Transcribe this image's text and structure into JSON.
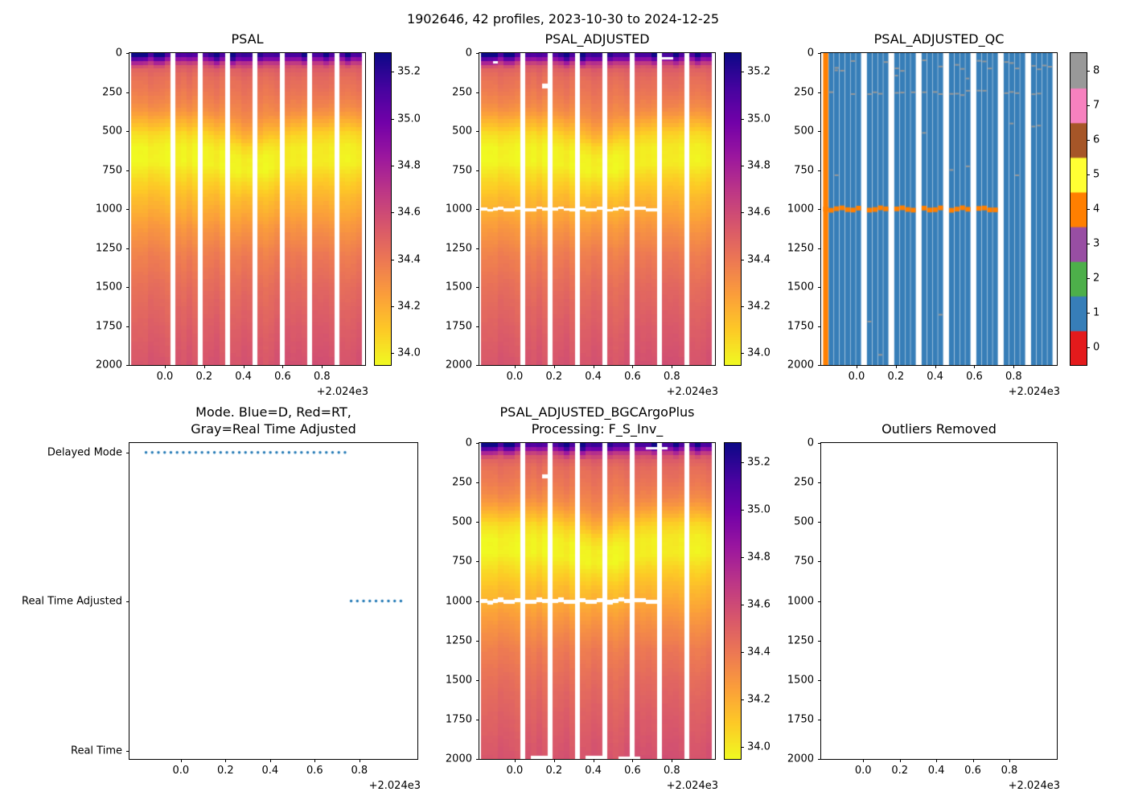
{
  "figure": {
    "title": "1902646, 42 profiles, 2023-10-30 to 2024-12-25",
    "background": "#ffffff"
  },
  "colormaps": {
    "plasma": [
      [
        0,
        "#0d0887"
      ],
      [
        0.111,
        "#46039f"
      ],
      [
        0.222,
        "#7201a8"
      ],
      [
        0.333,
        "#9c179e"
      ],
      [
        0.444,
        "#bd3786"
      ],
      [
        0.556,
        "#d8576b"
      ],
      [
        0.667,
        "#ed7953"
      ],
      [
        0.778,
        "#fb9f3a"
      ],
      [
        0.889,
        "#fdca26"
      ],
      [
        1,
        "#f0f921"
      ]
    ],
    "qc_flags": [
      "#e41a1c",
      "#377eb8",
      "#4daf4a",
      "#984ea3",
      "#ff7f00",
      "#ffff33",
      "#a65628",
      "#f781bf",
      "#999999"
    ]
  },
  "chart_data": [
    {
      "id": "psal",
      "type": "heatmap",
      "title": "PSAL",
      "x_range": [
        -0.18,
        1.02
      ],
      "data_x_range": [
        -0.17,
        1.0
      ],
      "x_ticks": [
        0.0,
        0.2,
        0.4,
        0.6,
        0.8
      ],
      "x_tick_labels": [
        "0.0",
        "0.2",
        "0.4",
        "0.6",
        "0.8"
      ],
      "x_offset_label": "+2.024e3",
      "y_range": [
        0,
        2000
      ],
      "y_ticks": [
        0,
        250,
        500,
        750,
        1000,
        1250,
        1500,
        1750,
        2000
      ],
      "y_tick_labels": [
        "0",
        "250",
        "500",
        "750",
        "1000",
        "1250",
        "1500",
        "1750",
        "2000"
      ],
      "n_profiles": 42,
      "gap_columns": [
        7,
        12,
        17,
        22,
        27,
        32,
        37
      ],
      "profile": {
        "depths": [
          0,
          25,
          50,
          90,
          150,
          250,
          350,
          450,
          520,
          600,
          700,
          800,
          900,
          1000,
          1150,
          1300,
          1500,
          1750,
          2000
        ],
        "values": [
          35.18,
          35.02,
          34.72,
          34.52,
          34.45,
          34.4,
          34.32,
          34.17,
          34.05,
          33.98,
          33.97,
          34.06,
          34.14,
          34.2,
          34.3,
          34.38,
          34.45,
          34.51,
          34.56
        ]
      },
      "dip": {
        "center": 0.43,
        "sigma": 0.11,
        "amplitude": 90
      },
      "surface_dark_columns": [
        0,
        1,
        2
      ],
      "colorbar": {
        "vmin": 33.95,
        "vmax": 35.28,
        "ticks": [
          35.2,
          35.0,
          34.8,
          34.6,
          34.4,
          34.2,
          34.0
        ],
        "tick_labels": [
          "35.2",
          "35.0",
          "34.8",
          "34.6",
          "34.4",
          "34.2",
          "34.0"
        ]
      }
    },
    {
      "id": "psal_adjusted",
      "type": "heatmap",
      "title": "PSAL_ADJUSTED",
      "profile_from": 0,
      "x_range": [
        -0.18,
        1.02
      ],
      "data_x_range": [
        -0.17,
        1.0
      ],
      "x_ticks": [
        0.0,
        0.2,
        0.4,
        0.6,
        0.8
      ],
      "x_tick_labels": [
        "0.0",
        "0.2",
        "0.4",
        "0.6",
        "0.8"
      ],
      "x_offset_label": "+2.024e3",
      "y_range": [
        0,
        2000
      ],
      "y_ticks": [
        0,
        250,
        500,
        750,
        1000,
        1250,
        1500,
        1750,
        2000
      ],
      "y_tick_labels": [
        "0",
        "250",
        "500",
        "750",
        "1000",
        "1250",
        "1500",
        "1750",
        "2000"
      ],
      "n_profiles": 42,
      "gap_columns": [
        7,
        12,
        17,
        22,
        27,
        32,
        37
      ],
      "masked_band": {
        "depth": 1000,
        "half_width": 10,
        "x_max": 0.74
      },
      "white_dashes": [
        {
          "cols": [
            11,
            11
          ],
          "depths": [
            198,
            225
          ]
        },
        {
          "cols": [
            2,
            2
          ],
          "depths": [
            52,
            68
          ]
        },
        {
          "cols": [
            33,
            34
          ],
          "depths": [
            24,
            40
          ]
        }
      ],
      "colorbar": {
        "vmin": 33.95,
        "vmax": 35.28,
        "ticks": [
          35.2,
          35.0,
          34.8,
          34.6,
          34.4,
          34.2,
          34.0
        ],
        "tick_labels": [
          "35.2",
          "35.0",
          "34.8",
          "34.6",
          "34.4",
          "34.2",
          "34.0"
        ]
      }
    },
    {
      "id": "psal_adjusted_qc",
      "type": "qc_heatmap",
      "title": "PSAL_ADJUSTED_QC",
      "x_range": [
        -0.18,
        1.02
      ],
      "data_x_range": [
        -0.17,
        1.0
      ],
      "x_ticks": [
        0.0,
        0.2,
        0.4,
        0.6,
        0.8
      ],
      "x_tick_labels": [
        "0.0",
        "0.2",
        "0.4",
        "0.6",
        "0.8"
      ],
      "x_offset_label": "+2.024e3",
      "y_range": [
        0,
        2000
      ],
      "y_ticks": [
        0,
        250,
        500,
        750,
        1000,
        1250,
        1500,
        1750,
        2000
      ],
      "y_tick_labels": [
        "0",
        "250",
        "500",
        "750",
        "1000",
        "1250",
        "1500",
        "1750",
        "2000"
      ],
      "n_profiles": 42,
      "gap_columns": [
        7,
        12,
        17,
        22,
        27,
        32,
        37
      ],
      "base_flag": 1,
      "first_column_flag": 4,
      "band": {
        "depth": 1000,
        "half_width": 15,
        "x_max": 0.74,
        "flag": 4
      },
      "dash_flag": 8,
      "colorbar": {
        "discrete": true,
        "ticks": [
          0,
          1,
          2,
          3,
          4,
          5,
          6,
          7,
          8
        ],
        "tick_labels": [
          "0",
          "1",
          "2",
          "3",
          "4",
          "5",
          "6",
          "7",
          "8"
        ]
      }
    },
    {
      "id": "mode",
      "type": "dot_status",
      "title": "Mode. Blue=D, Red=RT,\nGray=Real Time Adjusted",
      "x_range": [
        -0.23,
        1.06
      ],
      "x_ticks": [
        0.0,
        0.2,
        0.4,
        0.6,
        0.8
      ],
      "x_tick_labels": [
        "0.0",
        "0.2",
        "0.4",
        "0.6",
        "0.8"
      ],
      "x_offset_label": "+2.024e3",
      "y_categories": [
        {
          "label": "Delayed Mode",
          "f": 0.03
        },
        {
          "label": "Real Time Adjusted",
          "f": 0.5
        },
        {
          "label": "Real Time",
          "f": 0.975
        }
      ],
      "marker_color": "#1f77b4",
      "segments": [
        {
          "category": "Delayed Mode",
          "x_start": -0.156,
          "x_end": 0.737,
          "step": 0.02786
        },
        {
          "category": "Real Time Adjusted",
          "x_start": 0.763,
          "x_end": 0.987,
          "step": 0.02786
        }
      ]
    },
    {
      "id": "psal_adjusted_bgc",
      "type": "heatmap",
      "title": "PSAL_ADJUSTED_BGCArgoPlus\nProcessing: F_S_Inv_",
      "profile_from": 0,
      "x_range": [
        -0.18,
        1.02
      ],
      "data_x_range": [
        -0.17,
        1.0
      ],
      "x_ticks": [
        0.0,
        0.2,
        0.4,
        0.6,
        0.8
      ],
      "x_tick_labels": [
        "0.0",
        "0.2",
        "0.4",
        "0.6",
        "0.8"
      ],
      "x_offset_label": "+2.024e3",
      "y_range": [
        0,
        2000
      ],
      "y_ticks": [
        0,
        250,
        500,
        750,
        1000,
        1250,
        1500,
        1750,
        2000
      ],
      "y_tick_labels": [
        "0",
        "250",
        "500",
        "750",
        "1000",
        "1250",
        "1500",
        "1750",
        "2000"
      ],
      "n_profiles": 42,
      "gap_columns": [
        7,
        12,
        17,
        22,
        27,
        32,
        37
      ],
      "masked_band": {
        "depth": 1000,
        "half_width": 13,
        "x_max": 0.74
      },
      "white_dashes": [
        {
          "cols": [
            9,
            11
          ],
          "depths": [
            1982,
            2000
          ]
        },
        {
          "cols": [
            19,
            21
          ],
          "depths": [
            1982,
            2000
          ]
        },
        {
          "cols": [
            25,
            28
          ],
          "depths": [
            1986,
            2000
          ]
        },
        {
          "cols": [
            30,
            33
          ],
          "depths": [
            24,
            40
          ]
        },
        {
          "cols": [
            11,
            11
          ],
          "depths": [
            198,
            225
          ]
        }
      ],
      "colorbar": {
        "vmin": 33.95,
        "vmax": 35.28,
        "ticks": [
          35.2,
          35.0,
          34.8,
          34.6,
          34.4,
          34.2,
          34.0
        ],
        "tick_labels": [
          "35.2",
          "35.0",
          "34.8",
          "34.6",
          "34.4",
          "34.2",
          "34.0"
        ]
      }
    },
    {
      "id": "outliers_removed",
      "type": "empty",
      "title": "Outliers Removed",
      "x_range": [
        -0.23,
        1.06
      ],
      "x_ticks": [
        0.0,
        0.2,
        0.4,
        0.6,
        0.8
      ],
      "x_tick_labels": [
        "0.0",
        "0.2",
        "0.4",
        "0.6",
        "0.8"
      ],
      "x_offset_label": "+2.024e3",
      "y_range": [
        0,
        2000
      ],
      "y_ticks": [
        0,
        250,
        500,
        750,
        1000,
        1250,
        1500,
        1750,
        2000
      ],
      "y_tick_labels": [
        "0",
        "250",
        "500",
        "750",
        "1000",
        "1250",
        "1500",
        "1750",
        "2000"
      ]
    }
  ]
}
